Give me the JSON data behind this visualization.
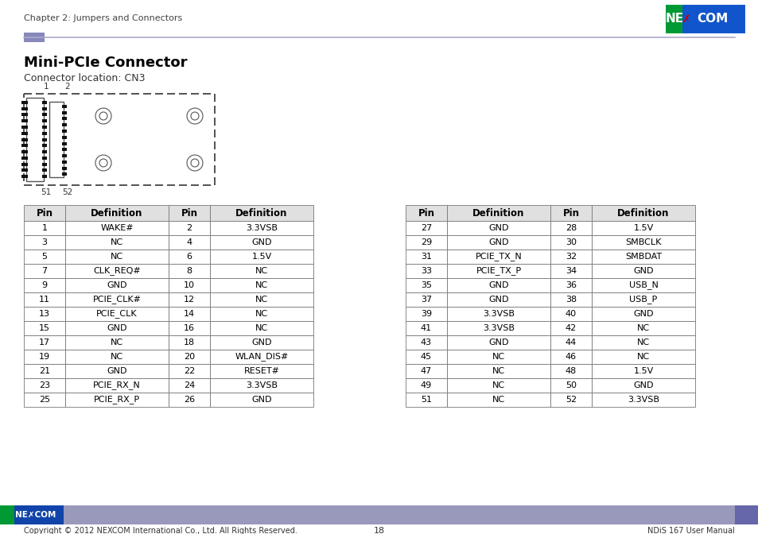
{
  "title": "Mini-PCIe Connector",
  "subtitle": "Connector location: CN3",
  "chapter_header": "Chapter 2: Jumpers and Connectors",
  "nexcom_logo_bg": "#0055b3",
  "nexcom_logo_green": "#00aa00",
  "page_number": "18",
  "footer_text": "Copyright © 2012 NEXCOM International Co., Ltd. All Rights Reserved.",
  "footer_right": "NDiS 167 User Manual",
  "table1": {
    "headers": [
      "Pin",
      "Definition",
      "Pin",
      "Definition"
    ],
    "rows": [
      [
        "1",
        "WAKE#",
        "2",
        "3.3VSB"
      ],
      [
        "3",
        "NC",
        "4",
        "GND"
      ],
      [
        "5",
        "NC",
        "6",
        "1.5V"
      ],
      [
        "7",
        "CLK_REQ#",
        "8",
        "NC"
      ],
      [
        "9",
        "GND",
        "10",
        "NC"
      ],
      [
        "11",
        "PCIE_CLK#",
        "12",
        "NC"
      ],
      [
        "13",
        "PCIE_CLK",
        "14",
        "NC"
      ],
      [
        "15",
        "GND",
        "16",
        "NC"
      ],
      [
        "17",
        "NC",
        "18",
        "GND"
      ],
      [
        "19",
        "NC",
        "20",
        "WLAN_DIS#"
      ],
      [
        "21",
        "GND",
        "22",
        "RESET#"
      ],
      [
        "23",
        "PCIE_RX_N",
        "24",
        "3.3VSB"
      ],
      [
        "25",
        "PCIE_RX_P",
        "26",
        "GND"
      ]
    ]
  },
  "table2": {
    "headers": [
      "Pin",
      "Definition",
      "Pin",
      "Definition"
    ],
    "rows": [
      [
        "27",
        "GND",
        "28",
        "1.5V"
      ],
      [
        "29",
        "GND",
        "30",
        "SMBCLK"
      ],
      [
        "31",
        "PCIE_TX_N",
        "32",
        "SMBDAT"
      ],
      [
        "33",
        "PCIE_TX_P",
        "34",
        "GND"
      ],
      [
        "35",
        "GND",
        "36",
        "USB_N"
      ],
      [
        "37",
        "GND",
        "38",
        "USB_P"
      ],
      [
        "39",
        "3.3VSB",
        "40",
        "GND"
      ],
      [
        "41",
        "3.3VSB",
        "42",
        "NC"
      ],
      [
        "43",
        "GND",
        "44",
        "NC"
      ],
      [
        "45",
        "NC",
        "46",
        "NC"
      ],
      [
        "47",
        "NC",
        "48",
        "1.5V"
      ],
      [
        "49",
        "NC",
        "50",
        "GND"
      ],
      [
        "51",
        "NC",
        "52",
        "3.3VSB"
      ]
    ]
  }
}
